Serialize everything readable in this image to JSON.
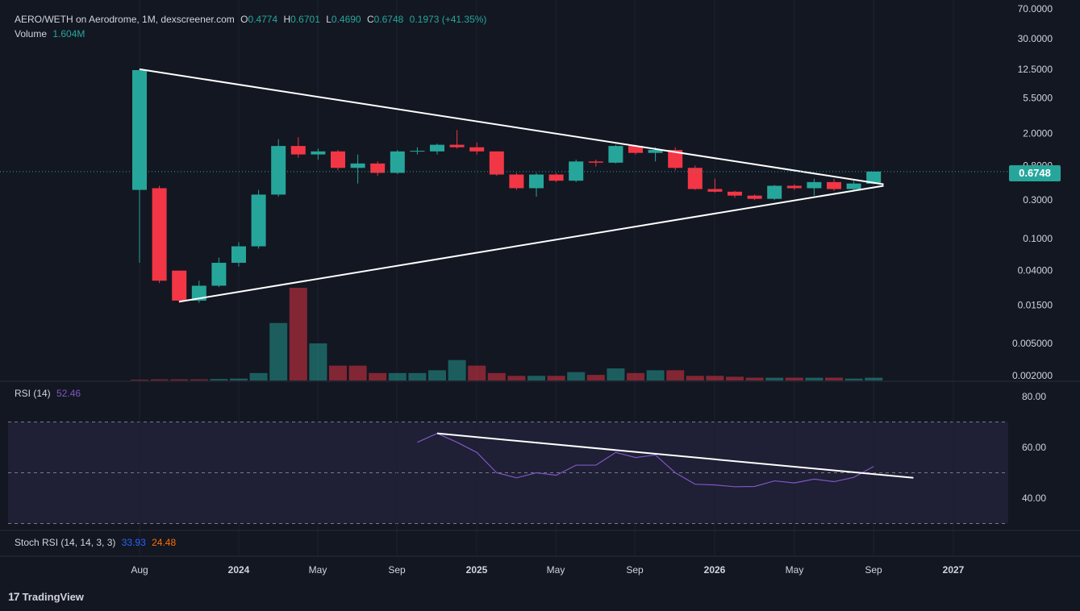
{
  "header": {
    "symbol": "AERO/WETH on Aerodrome, 1M, dexscreener.com",
    "o_label": "O",
    "o_value": "0.4774",
    "h_label": "H",
    "h_value": "0.6701",
    "l_label": "L",
    "l_value": "0.4690",
    "c_label": "C",
    "c_value": "0.6748",
    "change": "0.1973 (+41.35%)",
    "volume_label": "Volume",
    "volume_value": "1.604M"
  },
  "rsi": {
    "label": "RSI (14)",
    "value": "52.46"
  },
  "stoch": {
    "label": "Stoch RSI (14, 14, 3, 3)",
    "k": "33.93",
    "d": "24.48"
  },
  "price_tag": "0.6748",
  "brand": {
    "logo": "17",
    "name": "TradingView"
  },
  "colors": {
    "up": "#26a69a",
    "down": "#f23645",
    "rsi": "#7e57c2",
    "background": "#131722"
  },
  "chart_data": {
    "type": "candlestick",
    "y_scale": "log",
    "y_ticks": [
      "70.0000",
      "30.0000",
      "12.5000",
      "5.5000",
      "2.0000",
      "0.8000",
      "0.3000",
      "0.1000",
      "0.04000",
      "0.01500",
      "0.005000",
      "0.002000"
    ],
    "x_ticks": [
      "Aug",
      "2024",
      "May",
      "Sep",
      "2025",
      "May",
      "Sep",
      "2026",
      "May",
      "Sep",
      "2027"
    ],
    "candles": [
      {
        "o": 0.4,
        "h": 12.5,
        "l": 0.05,
        "c": 12.2
      },
      {
        "o": 0.42,
        "h": 0.45,
        "l": 0.028,
        "c": 0.03
      },
      {
        "o": 0.04,
        "h": 0.04,
        "l": 0.016,
        "c": 0.017
      },
      {
        "o": 0.017,
        "h": 0.03,
        "l": 0.016,
        "c": 0.026
      },
      {
        "o": 0.026,
        "h": 0.058,
        "l": 0.025,
        "c": 0.05
      },
      {
        "o": 0.05,
        "h": 0.09,
        "l": 0.045,
        "c": 0.08
      },
      {
        "o": 0.08,
        "h": 0.4,
        "l": 0.075,
        "c": 0.35
      },
      {
        "o": 0.35,
        "h": 1.7,
        "l": 0.33,
        "c": 1.4
      },
      {
        "o": 1.4,
        "h": 1.8,
        "l": 1.0,
        "c": 1.1
      },
      {
        "o": 1.1,
        "h": 1.3,
        "l": 0.95,
        "c": 1.2
      },
      {
        "o": 1.2,
        "h": 1.25,
        "l": 0.7,
        "c": 0.75
      },
      {
        "o": 0.75,
        "h": 1.1,
        "l": 0.48,
        "c": 0.85
      },
      {
        "o": 0.85,
        "h": 0.9,
        "l": 0.6,
        "c": 0.65
      },
      {
        "o": 0.65,
        "h": 1.25,
        "l": 0.63,
        "c": 1.2
      },
      {
        "o": 1.2,
        "h": 1.35,
        "l": 1.1,
        "c": 1.22
      },
      {
        "o": 1.2,
        "h": 1.5,
        "l": 1.1,
        "c": 1.45
      },
      {
        "o": 1.45,
        "h": 2.2,
        "l": 1.3,
        "c": 1.35
      },
      {
        "o": 1.35,
        "h": 1.55,
        "l": 1.1,
        "c": 1.2
      },
      {
        "o": 1.2,
        "h": 1.2,
        "l": 0.6,
        "c": 0.62
      },
      {
        "o": 0.62,
        "h": 0.65,
        "l": 0.4,
        "c": 0.42
      },
      {
        "o": 0.42,
        "h": 0.65,
        "l": 0.33,
        "c": 0.62
      },
      {
        "o": 0.62,
        "h": 0.65,
        "l": 0.5,
        "c": 0.52
      },
      {
        "o": 0.52,
        "h": 0.95,
        "l": 0.5,
        "c": 0.9
      },
      {
        "o": 0.9,
        "h": 0.95,
        "l": 0.78,
        "c": 0.87
      },
      {
        "o": 0.87,
        "h": 1.45,
        "l": 0.85,
        "c": 1.4
      },
      {
        "o": 1.4,
        "h": 1.45,
        "l": 1.1,
        "c": 1.15
      },
      {
        "o": 1.15,
        "h": 1.35,
        "l": 0.9,
        "c": 1.25
      },
      {
        "o": 1.25,
        "h": 1.35,
        "l": 0.7,
        "c": 0.75
      },
      {
        "o": 0.75,
        "h": 0.8,
        "l": 0.4,
        "c": 0.41
      },
      {
        "o": 0.41,
        "h": 0.55,
        "l": 0.37,
        "c": 0.38
      },
      {
        "o": 0.38,
        "h": 0.39,
        "l": 0.32,
        "c": 0.34
      },
      {
        "o": 0.34,
        "h": 0.35,
        "l": 0.3,
        "c": 0.31
      },
      {
        "o": 0.31,
        "h": 0.46,
        "l": 0.3,
        "c": 0.45
      },
      {
        "o": 0.45,
        "h": 0.47,
        "l": 0.4,
        "c": 0.42
      },
      {
        "o": 0.42,
        "h": 0.55,
        "l": 0.34,
        "c": 0.5
      },
      {
        "o": 0.5,
        "h": 0.55,
        "l": 0.39,
        "c": 0.41
      },
      {
        "o": 0.41,
        "h": 0.52,
        "l": 0.4,
        "c": 0.48
      },
      {
        "o": 0.4774,
        "h": 0.6701,
        "l": 0.469,
        "c": 0.6748
      }
    ],
    "volume_ylim": [
      0,
      1
    ],
    "volume": [
      0.002,
      0.012,
      0.012,
      0.012,
      0.016,
      0.02,
      0.08,
      0.62,
      1.0,
      0.4,
      0.16,
      0.16,
      0.08,
      0.08,
      0.08,
      0.11,
      0.22,
      0.16,
      0.08,
      0.05,
      0.05,
      0.05,
      0.09,
      0.06,
      0.13,
      0.08,
      0.11,
      0.11,
      0.05,
      0.05,
      0.04,
      0.03,
      0.03,
      0.03,
      0.03,
      0.03,
      0.02,
      0.03
    ],
    "volume_colors": [
      "down",
      "down",
      "down",
      "down",
      "up",
      "up",
      "up",
      "up",
      "down",
      "up",
      "down",
      "down",
      "down",
      "up",
      "up",
      "up",
      "up",
      "down",
      "down",
      "down",
      "up",
      "down",
      "up",
      "down",
      "up",
      "down",
      "up",
      "down",
      "down",
      "down",
      "down",
      "down",
      "up",
      "down",
      "up",
      "down",
      "up",
      "up"
    ],
    "rsi_ylim": [
      30,
      80
    ],
    "rsi_ticks": [
      "80.00",
      "60.00",
      "40.00"
    ],
    "rsi_bands": [
      70,
      50,
      30
    ],
    "rsi_series": [
      {
        "i": 14,
        "v": 62
      },
      {
        "i": 15,
        "v": 65.5
      },
      {
        "i": 16,
        "v": 62
      },
      {
        "i": 17,
        "v": 58
      },
      {
        "i": 18,
        "v": 50
      },
      {
        "i": 19,
        "v": 48
      },
      {
        "i": 20,
        "v": 50
      },
      {
        "i": 21,
        "v": 49
      },
      {
        "i": 22,
        "v": 53
      },
      {
        "i": 23,
        "v": 53
      },
      {
        "i": 24,
        "v": 58
      },
      {
        "i": 25,
        "v": 56
      },
      {
        "i": 26,
        "v": 57
      },
      {
        "i": 27,
        "v": 50
      },
      {
        "i": 28,
        "v": 45.5
      },
      {
        "i": 29,
        "v": 45.2
      },
      {
        "i": 30,
        "v": 44.5
      },
      {
        "i": 31,
        "v": 44.6
      },
      {
        "i": 32,
        "v": 46.8
      },
      {
        "i": 33,
        "v": 46
      },
      {
        "i": 34,
        "v": 47.5
      },
      {
        "i": 35,
        "v": 46.5
      },
      {
        "i": 36,
        "v": 48.2
      },
      {
        "i": 37,
        "v": 52.5
      }
    ],
    "trendlines": [
      {
        "x1": 0,
        "y1": 12.5,
        "x2": 37.5,
        "y2": 0.47
      },
      {
        "x1": 2,
        "y1": 0.0165,
        "x2": 37.5,
        "y2": 0.45
      }
    ],
    "rsi_trendline": {
      "x1": 15,
      "y1": 65.5,
      "x2": 39,
      "y2": 48
    }
  }
}
